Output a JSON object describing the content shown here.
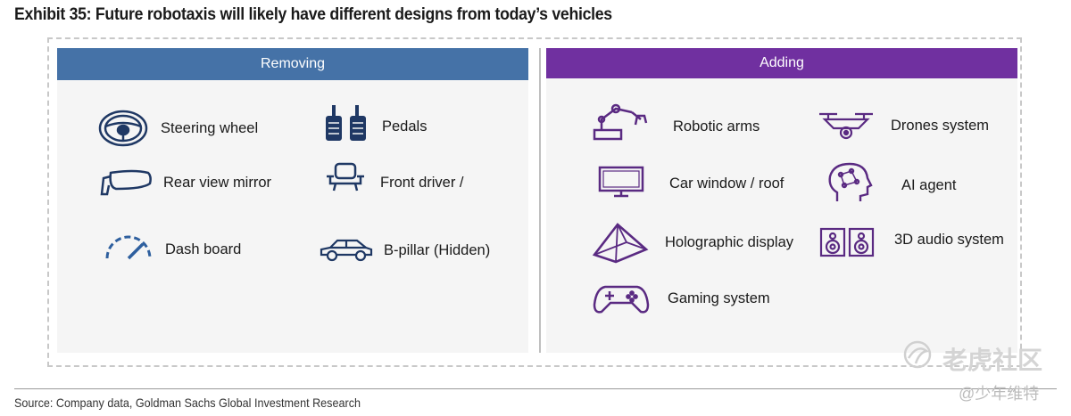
{
  "title": "Exhibit 35: Future robotaxis will likely have different designs from today’s vehicles",
  "removing": {
    "header": "Removing",
    "items": [
      {
        "label": "Steering wheel",
        "icon": "steering-wheel-icon"
      },
      {
        "label": "Pedals",
        "icon": "pedals-icon"
      },
      {
        "label": "Rear view mirror",
        "icon": "rear-view-mirror-icon"
      },
      {
        "label": "Front driver /",
        "icon": "driver-seat-icon"
      },
      {
        "label": "Dash board",
        "icon": "dashboard-gauge-icon"
      },
      {
        "label": "B-pillar (Hidden)",
        "icon": "car-side-icon"
      }
    ]
  },
  "adding": {
    "header": "Adding",
    "items": [
      {
        "label": "Robotic arms",
        "icon": "robotic-arm-icon"
      },
      {
        "label": "Drones system",
        "icon": "drone-icon"
      },
      {
        "label": "Car window / roof",
        "icon": "monitor-icon"
      },
      {
        "label": "AI agent",
        "icon": "ai-head-icon"
      },
      {
        "label": "Holographic display",
        "icon": "pyramid-icon"
      },
      {
        "label": "3D audio system",
        "icon": "speakers-icon"
      },
      {
        "label": "Gaming system",
        "icon": "gamepad-icon"
      }
    ]
  },
  "colors": {
    "removing": "#4572a7",
    "adding": "#7030a0"
  },
  "source": "Source: Company data, Goldman Sachs Global Investment Research",
  "watermark": {
    "brand": "老虎社区",
    "author": "@少年维特"
  }
}
